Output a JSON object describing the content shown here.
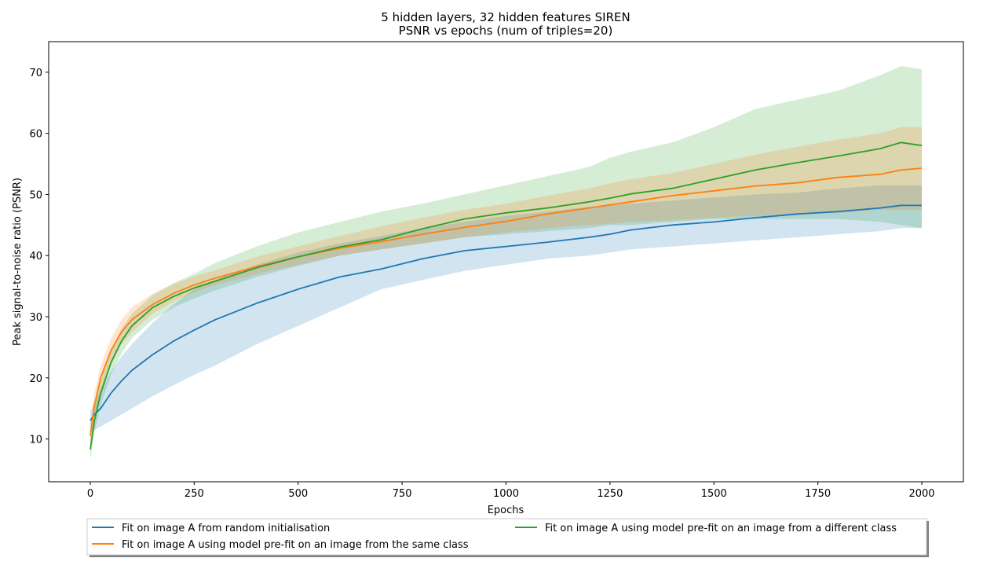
{
  "chart_data": {
    "type": "line",
    "title": [
      "5 hidden layers, 32 hidden features SIREN",
      "PSNR vs epochs (num of triples=20)"
    ],
    "xlabel": "Epochs",
    "ylabel": "Peak signal-to-noise ratio (PSNR)",
    "xlim": [
      -100,
      2100
    ],
    "ylim": [
      3,
      75
    ],
    "xticks": [
      0,
      250,
      500,
      750,
      1000,
      1250,
      1500,
      1750,
      2000
    ],
    "yticks": [
      10,
      20,
      30,
      40,
      50,
      60,
      70
    ],
    "grid": false,
    "legend": "bottom-center-outside",
    "series": [
      {
        "name": "Fit on image A from random initialisation",
        "color": "#1f77b4",
        "x": [
          0,
          10,
          25,
          50,
          75,
          100,
          150,
          200,
          250,
          300,
          400,
          500,
          600,
          700,
          800,
          900,
          1000,
          1100,
          1200,
          1250,
          1300,
          1400,
          1500,
          1600,
          1700,
          1800,
          1900,
          1950,
          2000
        ],
        "mean": [
          13,
          14,
          15,
          17.5,
          19.5,
          21.2,
          23.8,
          26,
          27.8,
          29.5,
          32.2,
          34.5,
          36.5,
          37.8,
          39.5,
          40.8,
          41.5,
          42.2,
          43,
          43.5,
          44.2,
          45,
          45.5,
          46.2,
          46.8,
          47.2,
          47.8,
          48.2,
          48.2
        ],
        "lower": [
          11,
          11.5,
          12,
          13,
          14,
          15,
          17,
          18.8,
          20.5,
          22,
          25.5,
          28.5,
          31.5,
          34.5,
          36,
          37.5,
          38.5,
          39.5,
          40,
          40.5,
          41,
          41.5,
          42,
          42.5,
          43,
          43.5,
          44,
          44.5,
          44.5
        ],
        "upper": [
          14.5,
          16,
          18,
          21,
          23.5,
          25.5,
          29,
          32,
          34.5,
          36,
          38.5,
          40.5,
          42,
          43.2,
          44.5,
          45.5,
          46.5,
          47.2,
          48,
          48.2,
          48.5,
          49,
          49.5,
          50,
          50.3,
          51,
          51.5,
          51.5,
          51.5
        ]
      },
      {
        "name": "Fit on image A using model pre-fit on an image from the same class",
        "color": "#ff7f0e",
        "x": [
          0,
          10,
          25,
          50,
          75,
          100,
          150,
          200,
          250,
          300,
          400,
          500,
          600,
          700,
          800,
          900,
          1000,
          1100,
          1200,
          1250,
          1300,
          1400,
          1500,
          1600,
          1700,
          1800,
          1900,
          1950,
          2000
        ],
        "mean": [
          10.5,
          15.5,
          20,
          24.5,
          27.5,
          29.5,
          32,
          33.8,
          35.2,
          36.3,
          38.2,
          39.8,
          41.2,
          42.3,
          43.5,
          44.6,
          45.6,
          46.8,
          47.8,
          48.3,
          48.8,
          49.8,
          50.6,
          51.4,
          51.9,
          52.8,
          53.3,
          54,
          54.3
        ],
        "lower": [
          9,
          13.5,
          18,
          22.5,
          25.5,
          27.5,
          30.5,
          32.5,
          34,
          35.2,
          37,
          38.5,
          40,
          41,
          42,
          43,
          43.8,
          44.5,
          45,
          45.2,
          45.5,
          45.8,
          46.2,
          46.5,
          46.8,
          47,
          47.5,
          47.5,
          47.5
        ],
        "upper": [
          12,
          17.5,
          22,
          26.5,
          29.5,
          31.5,
          33.8,
          35.3,
          36.6,
          37.6,
          39.8,
          41.5,
          43.2,
          44.8,
          46.2,
          47.5,
          48.5,
          49.8,
          51,
          51.8,
          52.5,
          53.5,
          55,
          56.5,
          57.8,
          59,
          60,
          61,
          61
        ]
      },
      {
        "name": "Fit on image A using model pre-fit on an image from a different class",
        "color": "#2ca02c",
        "x": [
          0,
          10,
          25,
          50,
          75,
          100,
          150,
          200,
          250,
          300,
          400,
          500,
          600,
          700,
          800,
          900,
          1000,
          1100,
          1200,
          1250,
          1300,
          1400,
          1500,
          1600,
          1700,
          1800,
          1900,
          1950,
          2000
        ],
        "mean": [
          8.3,
          13,
          17.5,
          22.5,
          26,
          28.5,
          31.5,
          33.3,
          34.7,
          35.8,
          38,
          39.8,
          41.4,
          42.6,
          44.4,
          46,
          47,
          47.8,
          48.8,
          49.4,
          50.1,
          51,
          52.5,
          54,
          55.2,
          56.3,
          57.5,
          58.5,
          58
        ]
      }
    ],
    "green_band": {
      "lower": [
        6.5,
        11,
        15.5,
        20.5,
        24,
        26.5,
        29.5,
        31.5,
        33,
        34.3,
        36.5,
        38.3,
        40,
        41,
        42,
        43,
        43.5,
        44,
        44.5,
        45,
        45,
        45.5,
        46,
        46,
        46,
        46,
        45.5,
        45,
        44.5
      ],
      "upper": [
        10,
        15,
        19.5,
        24.5,
        28,
        30.5,
        33.5,
        35.5,
        37,
        38.8,
        41.5,
        43.8,
        45.5,
        47.2,
        48.5,
        50,
        51.5,
        53,
        54.5,
        56,
        57,
        58.5,
        61,
        64,
        65.5,
        67,
        69.5,
        71,
        70.5
      ]
    }
  }
}
